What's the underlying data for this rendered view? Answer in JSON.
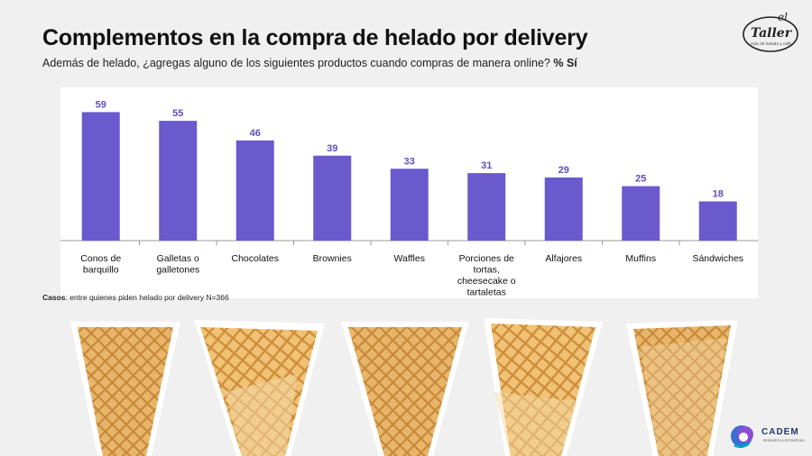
{
  "header": {
    "title": "Complementos en la compra de helado por delivery",
    "subtitle": "Además de helado, ¿agregas alguno de los siguientes productos cuando compras de manera online?",
    "subtitle_suffix": "% Sí"
  },
  "footnote": {
    "label": "Casos",
    "text": ": entre quienes piden helado por delivery N=366"
  },
  "logos": {
    "taller_script": "el Taller",
    "taller_tagline": "más de helado y café",
    "cadem": "CADEM",
    "cadem_tagline": "RESEARCH & ESTRATEGIA"
  },
  "colors": {
    "bar": "#6a5acd",
    "value_label": "#5b4fc4",
    "background": "#f0f0f0",
    "panel": "#ffffff"
  },
  "chart_data": {
    "type": "bar",
    "categories": [
      [
        "Conos de",
        "barquillo"
      ],
      [
        "Galletas o",
        "galletones"
      ],
      [
        "Chocolates"
      ],
      [
        "Brownies"
      ],
      [
        "Waffles"
      ],
      [
        "Porciones de",
        "tortas,",
        "cheesecake o",
        "tartaletas"
      ],
      [
        "Alfajores"
      ],
      [
        "Muffins"
      ],
      [
        "Sándwiches"
      ]
    ],
    "values": [
      59,
      55,
      46,
      39,
      33,
      31,
      29,
      25,
      18
    ],
    "ylim": [
      0,
      60
    ],
    "grid": false,
    "legend": "none"
  }
}
